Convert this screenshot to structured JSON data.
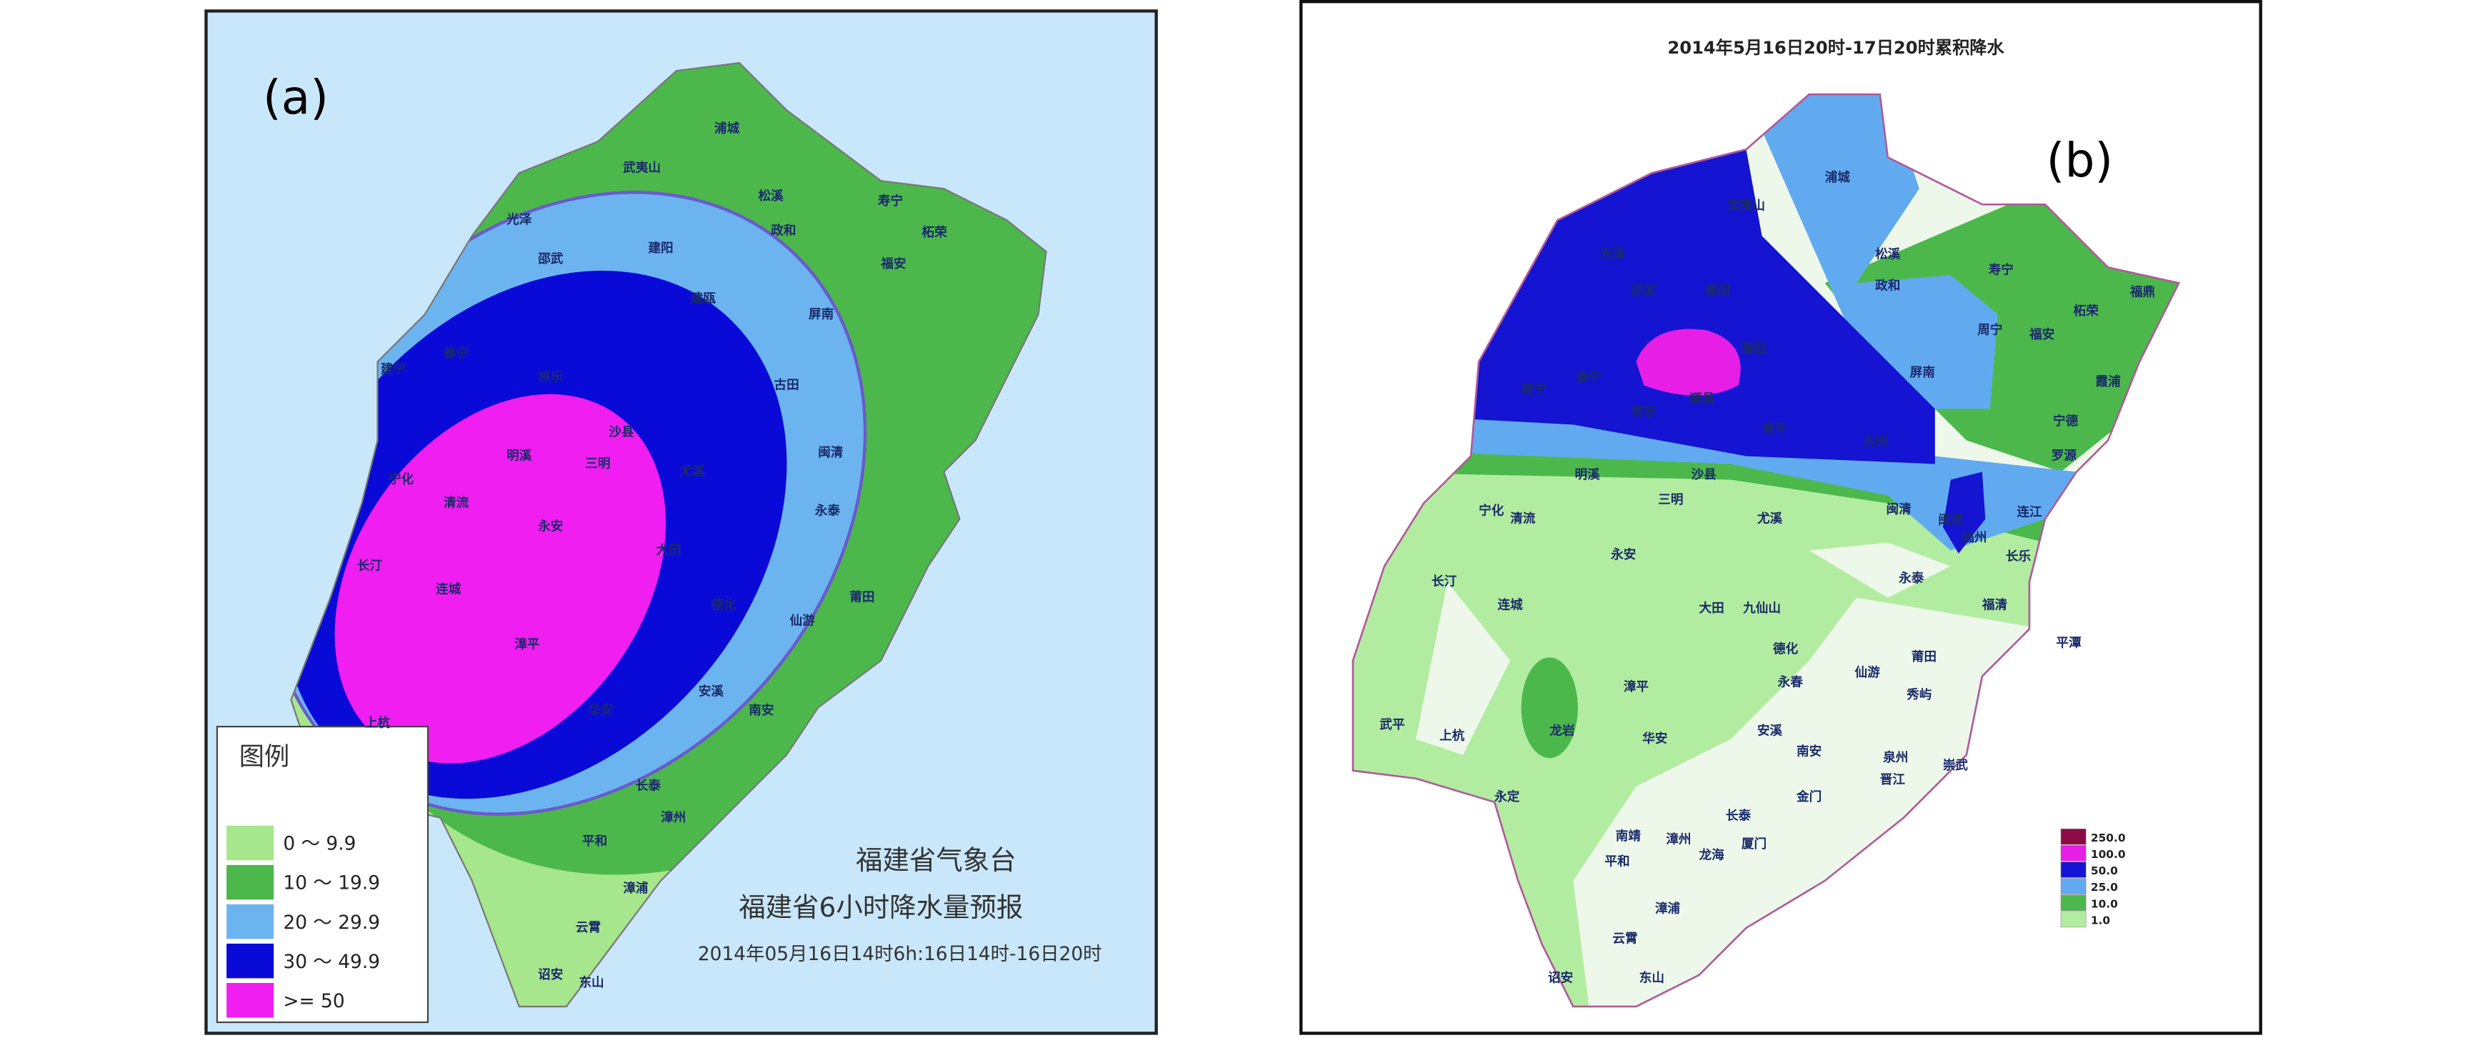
{
  "panels": [
    {
      "label": "(a)",
      "legend": {
        "title": "图例",
        "items": [
          {
            "label": "0 ～ 9.9",
            "color": "#a6e68c"
          },
          {
            "label": "10 ～ 19.9",
            "color": "#4cb84c"
          },
          {
            "label": "20 ～ 29.9",
            "color": "#6cb4f0"
          },
          {
            "label": "30 ～ 49.9",
            "color": "#0a0ad8"
          },
          {
            "label": ">= 50",
            "color": "#f01ef0"
          }
        ]
      },
      "agency": "福建省气象台",
      "title": "福建省6小时降水量预报",
      "time": "2014年05月16日14时6h:16日14时-16日20时",
      "places": [
        "浦城",
        "武夷山",
        "光泽",
        "松溪",
        "政和",
        "寿宁",
        "柘荣",
        "福安",
        "邵武",
        "建阳",
        "建瓯",
        "屏南",
        "古田",
        "闽清",
        "永泰",
        "莆田",
        "仙游",
        "德化",
        "安溪",
        "南安",
        "华安",
        "长泰",
        "漳州",
        "平和",
        "漳浦",
        "云霄",
        "诏安",
        "东山",
        "上杭",
        "长汀",
        "连城",
        "永安",
        "三明",
        "明溪",
        "清流",
        "宁化",
        "建宁",
        "泰宁",
        "将乐",
        "沙县",
        "尤溪",
        "大田",
        "漳平"
      ]
    },
    {
      "label": "(b)",
      "title": "2014年5月16日20时-17日20时累积降水",
      "legend": {
        "items": [
          {
            "label": "250.0",
            "color": "#8c0a46"
          },
          {
            "label": "100.0",
            "color": "#e61ee6"
          },
          {
            "label": "50.0",
            "color": "#1414d2"
          },
          {
            "label": "25.0",
            "color": "#62aaf0"
          },
          {
            "label": "10.0",
            "color": "#4cb84c"
          },
          {
            "label": "1.0",
            "color": "#b2eca0"
          }
        ]
      },
      "places": [
        "浦城",
        "武夷山",
        "光泽",
        "邵武",
        "建阳",
        "松溪",
        "政和",
        "寿宁",
        "柘荣",
        "福鼎",
        "周宁",
        "福安",
        "建宁",
        "泰宁",
        "建瓯",
        "屏南",
        "霞浦",
        "将乐",
        "顺昌",
        "宁德",
        "南平",
        "古田",
        "罗源",
        "明溪",
        "沙县",
        "宁化",
        "清流",
        "三明",
        "尤溪",
        "闽清",
        "闽侯",
        "福州",
        "连江",
        "长乐",
        "永安",
        "长汀",
        "永泰",
        "福清",
        "连城",
        "大田",
        "九仙山",
        "平潭",
        "德化",
        "莆田",
        "仙游",
        "秀屿",
        "漳平",
        "永春",
        "武平",
        "上杭",
        "龙岩",
        "华安",
        "安溪",
        "泉州",
        "南安",
        "崇武",
        "晋江",
        "永定",
        "长泰",
        "南靖",
        "漳州",
        "龙海",
        "厦门",
        "金门",
        "平和",
        "漳浦",
        "云霄",
        "诏安",
        "东山"
      ]
    }
  ]
}
